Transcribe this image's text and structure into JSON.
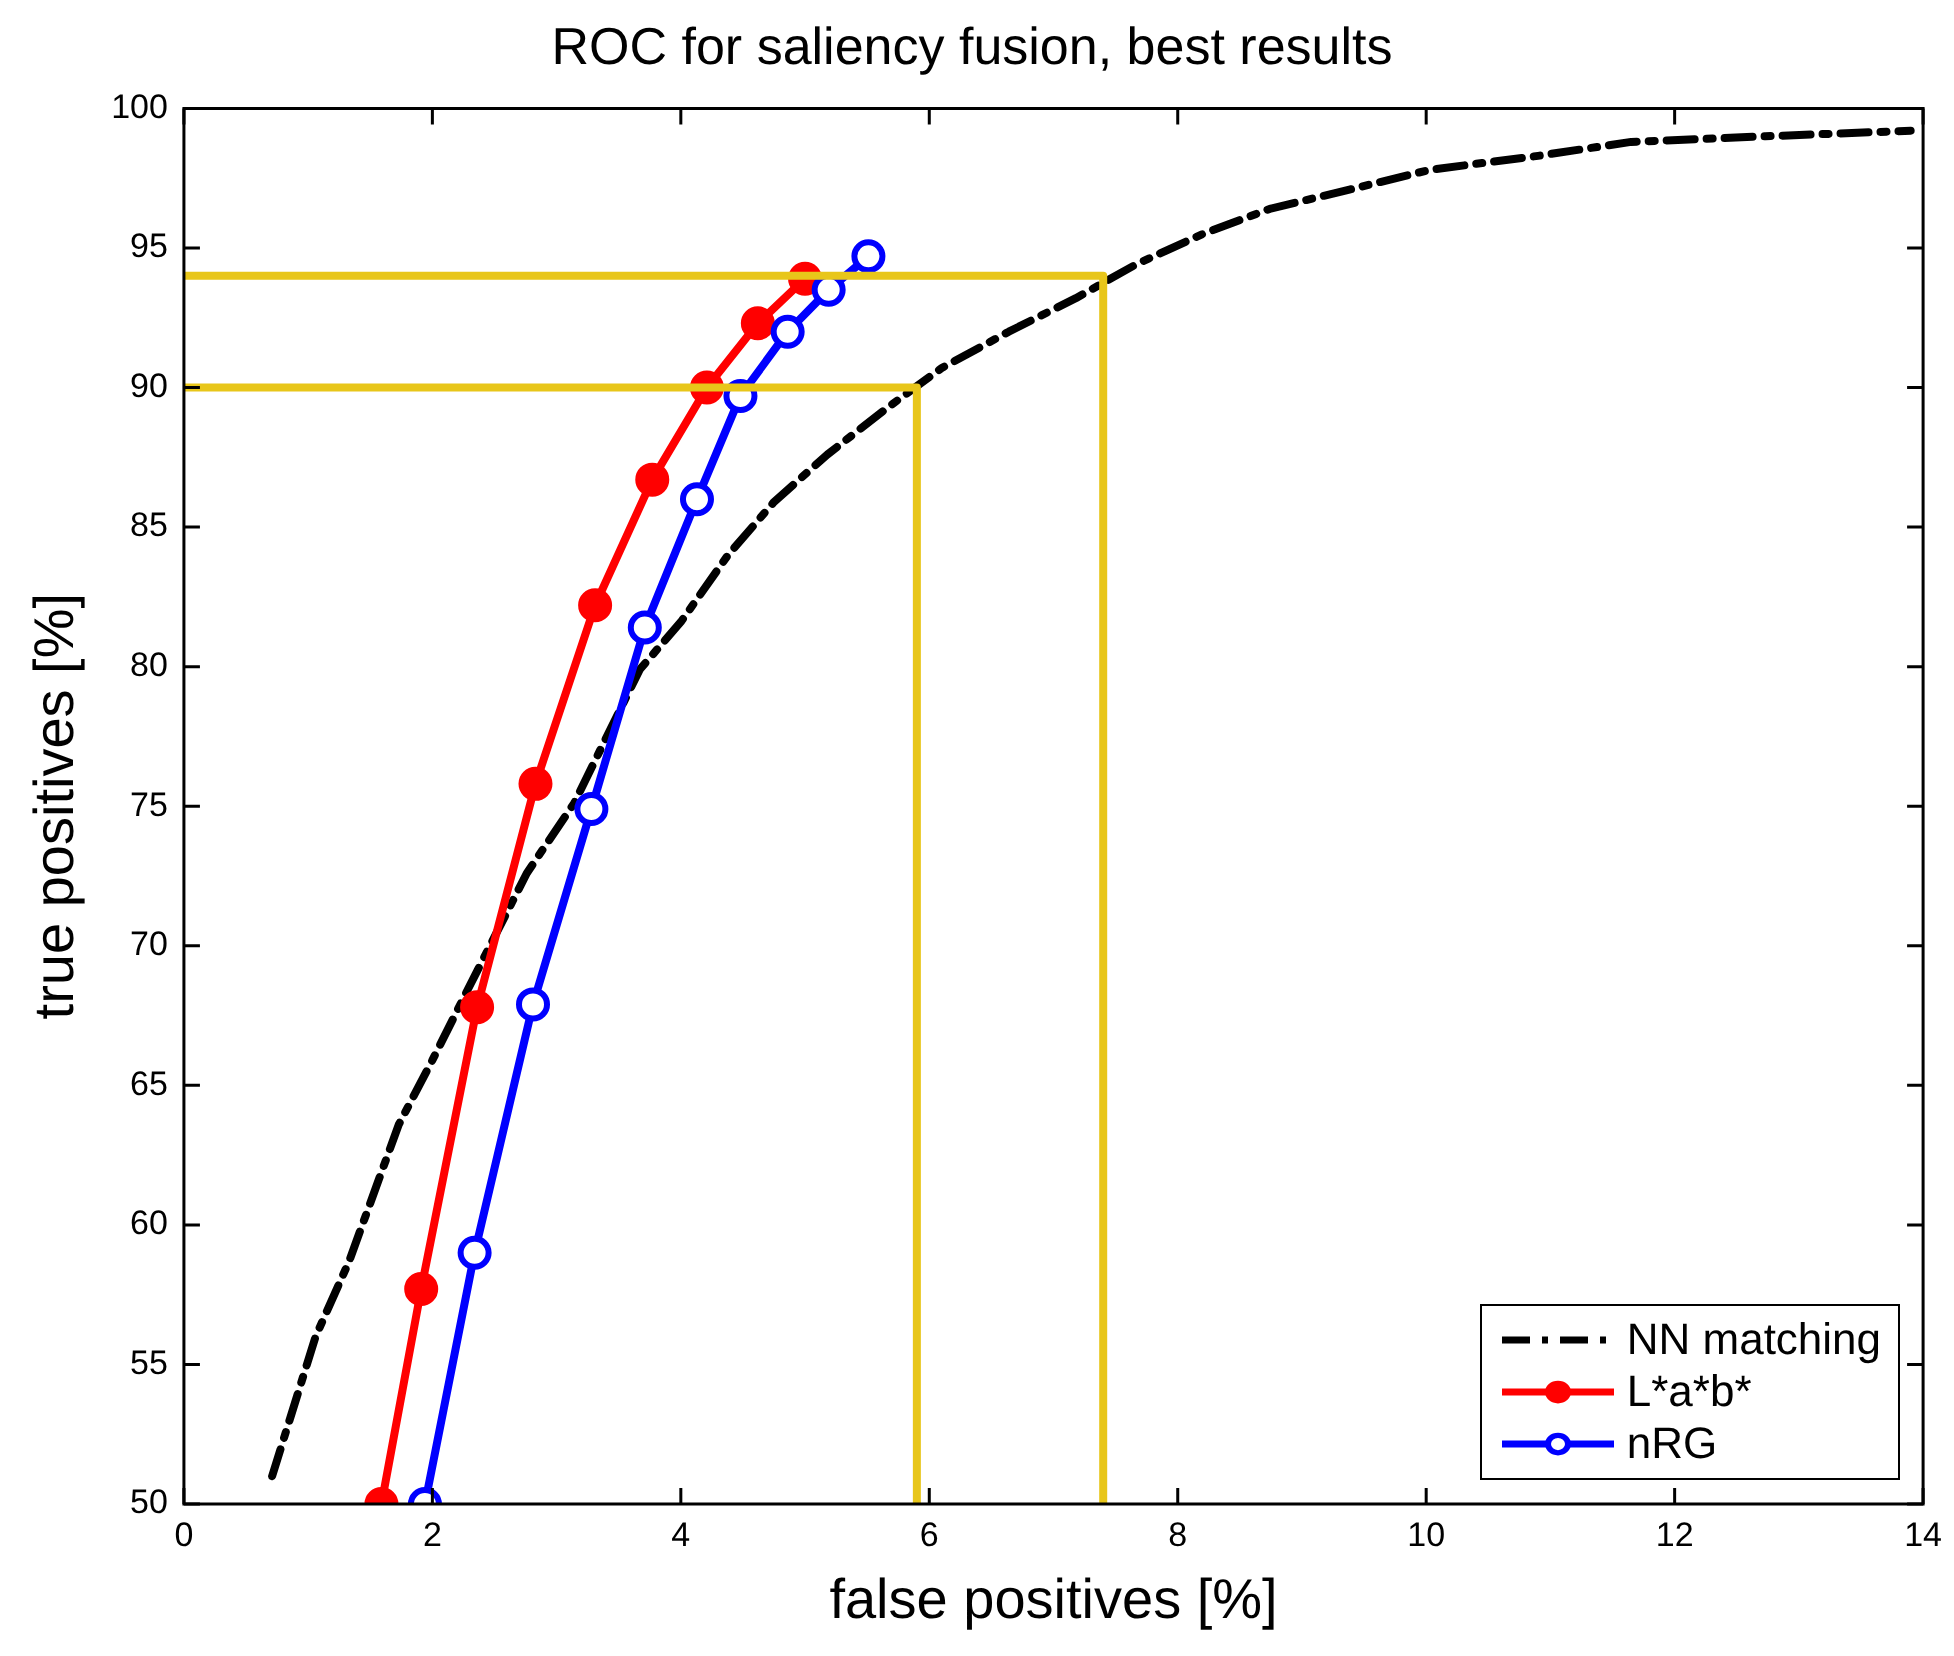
{
  "chart_data": {
    "type": "line",
    "title": "ROC for saliency fusion, best results",
    "xlabel": "false positives [%]",
    "ylabel": "true positives [%]",
    "xlim": [
      0,
      14
    ],
    "xticks": [
      0,
      2,
      4,
      6,
      8,
      10,
      12,
      14
    ],
    "ylim": [
      50,
      100
    ],
    "yticks": [
      50,
      55,
      60,
      65,
      70,
      75,
      80,
      85,
      90,
      95,
      100
    ],
    "grid": false,
    "legend": "bottom right",
    "series": [
      {
        "name": "NN matching",
        "color": "#000000",
        "marker": "none",
        "line_style": "dashed",
        "x": [
          0.71,
          1.06,
          1.33,
          1.73,
          2.0,
          2.27,
          2.76,
          3.14,
          3.67,
          4.0,
          4.38,
          4.75,
          5.18,
          5.67,
          6.1,
          6.64,
          7.18,
          7.66,
          8.2,
          8.74,
          9.39,
          10.03,
          10.9,
          11.65,
          12.73,
          13.9
        ],
        "values": [
          51.0,
          56.0,
          58.7,
          63.6,
          65.9,
          68.3,
          72.6,
          75.1,
          79.9,
          81.6,
          84.0,
          85.9,
          87.6,
          89.3,
          90.7,
          92.0,
          93.2,
          94.4,
          95.5,
          96.4,
          97.1,
          97.8,
          98.3,
          98.8,
          99.0,
          99.2
        ]
      },
      {
        "name": "L*a*b*",
        "color": "#ff0000",
        "marker": "circle",
        "x": [
          1.59,
          1.91,
          2.36,
          2.83,
          3.31,
          3.77,
          4.21,
          4.62,
          5.0
        ],
        "values": [
          50.0,
          57.7,
          67.8,
          75.8,
          82.2,
          86.7,
          90.0,
          92.3,
          93.9
        ]
      },
      {
        "name": "nRG",
        "color": "#0000ff",
        "marker": "circle",
        "x": [
          1.94,
          2.34,
          2.81,
          3.28,
          3.71,
          4.13,
          4.48,
          4.86,
          5.19,
          5.51
        ],
        "values": [
          50.0,
          59.0,
          67.9,
          74.9,
          81.4,
          86.0,
          89.7,
          92.0,
          93.5,
          94.7
        ]
      },
      {
        "color": "#e8c61a",
        "marker": "none",
        "x": [
          0,
          7.4,
          7.4
        ],
        "values": [
          94,
          94,
          50
        ]
      },
      {
        "color": "#e8c61a",
        "marker": "none",
        "x": [
          0,
          5.9,
          5.9
        ],
        "values": [
          90,
          90,
          50
        ]
      }
    ]
  }
}
